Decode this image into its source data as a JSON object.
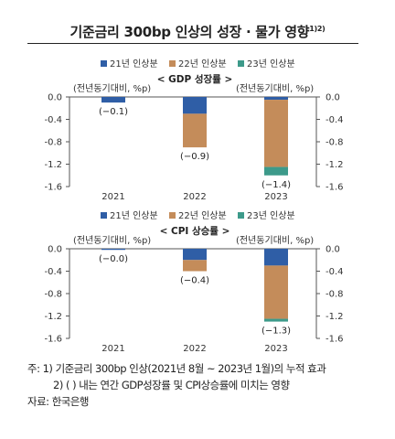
{
  "title": "기준금리 300bp 인상의 성장 · 물가 영향",
  "title_sup": "1)2)",
  "colors": {
    "y2021": "#2f5ea6",
    "y2022": "#c48c5a",
    "y2023": "#3d9a8a",
    "axis": "#555555"
  },
  "chart_data": [
    {
      "type": "bar",
      "stacked": true,
      "title": "GDP 성장률",
      "unit_label_left": "(전년동기대비, %p)",
      "unit_label_right": "(전년동기대비, %p)",
      "categories": [
        "2021",
        "2022",
        "2023"
      ],
      "series": [
        {
          "name": "21년 인상분",
          "values": [
            -0.1,
            -0.3,
            -0.05
          ]
        },
        {
          "name": "22년 인상분",
          "values": [
            0,
            -0.6,
            -1.2
          ]
        },
        {
          "name": "23년 인상분",
          "values": [
            0,
            0,
            -0.15
          ]
        }
      ],
      "totals_labels": [
        "(−0.1)",
        "(−0.9)",
        "(−1.4)"
      ],
      "ylim": [
        -1.6,
        0.0
      ],
      "yticks": [
        "0.0",
        "-0.4",
        "-0.8",
        "-1.2",
        "-1.6"
      ]
    },
    {
      "type": "bar",
      "stacked": true,
      "title": "CPI 상승률",
      "unit_label_left": "(전년동기대비, %p)",
      "unit_label_right": "(전년동기대비, %p)",
      "categories": [
        "2021",
        "2022",
        "2023"
      ],
      "series": [
        {
          "name": "21년 인상분",
          "values": [
            -0.02,
            -0.2,
            -0.3
          ]
        },
        {
          "name": "22년 인상분",
          "values": [
            0,
            -0.2,
            -0.95
          ]
        },
        {
          "name": "23년 인상분",
          "values": [
            0,
            0,
            -0.05
          ]
        }
      ],
      "totals_labels": [
        "(−0.0)",
        "(−0.4)",
        "(−1.3)"
      ],
      "ylim": [
        -1.6,
        0.0
      ],
      "yticks": [
        "0.0",
        "-0.4",
        "-0.8",
        "-1.2",
        "-1.6"
      ]
    }
  ],
  "notes": [
    "주: 1) 기준금리 300bp 인상(2021년 8월 ~ 2023년 1월)의 누적 효과",
    "2) ( ) 내는 연간 GDP성장률 및 CPI상승률에 미치는 영향",
    "자료: 한국은행"
  ]
}
